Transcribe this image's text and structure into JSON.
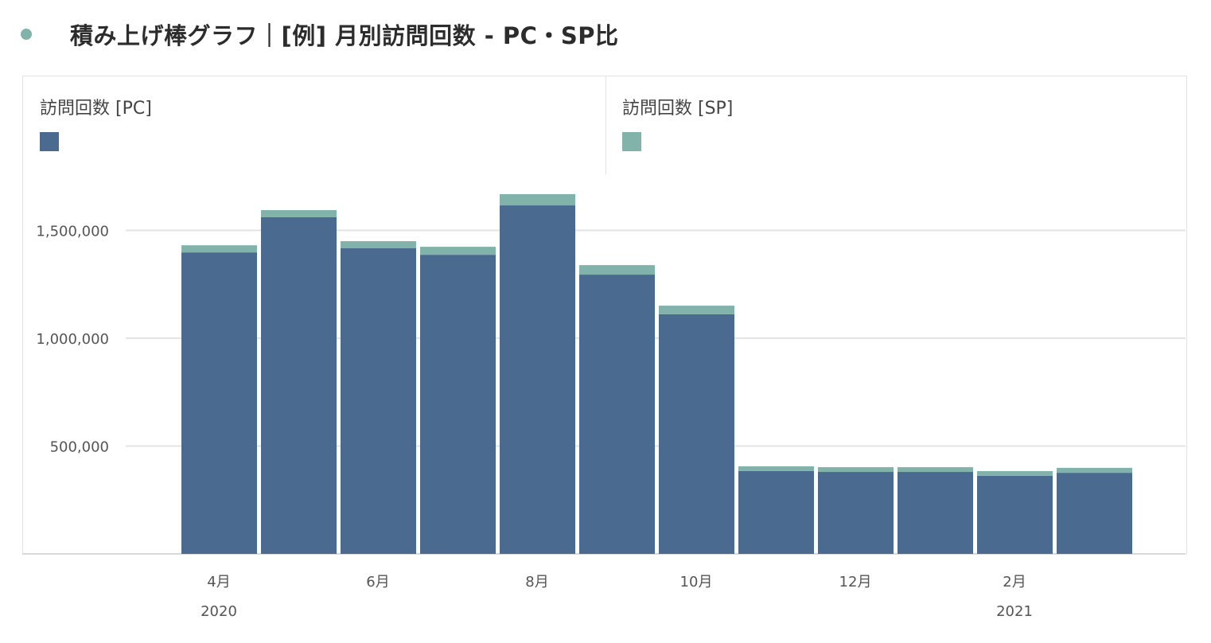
{
  "header": {
    "title": "積み上げ棒グラフ｜[例] 月別訪問回数 - PC・SP比",
    "dot_color": "#82b3ab"
  },
  "chart_data": {
    "type": "bar",
    "stacked": true,
    "categories": [
      "2020-04",
      "2020-05",
      "2020-06",
      "2020-07",
      "2020-08",
      "2020-09",
      "2020-10",
      "2020-11",
      "2020-12",
      "2021-01",
      "2021-02",
      "2021-03"
    ],
    "series": [
      {
        "name": "訪問回数 [PC]",
        "color": "#4a6b8f",
        "values": [
          1398000,
          1561000,
          1417000,
          1387000,
          1616000,
          1295000,
          1111000,
          384000,
          380000,
          380000,
          362000,
          376000
        ]
      },
      {
        "name": "訪問回数 [SP]",
        "color": "#82b3ab",
        "values": [
          33000,
          33000,
          33000,
          37000,
          52000,
          44000,
          40000,
          22000,
          22000,
          22000,
          22000,
          23000
        ]
      }
    ],
    "y_ticks": [
      "500,000",
      "1,000,000",
      "1,500,000"
    ],
    "y_tick_values": [
      500000,
      1000000,
      1500000
    ],
    "x_tick_labels": [
      "4月",
      "6月",
      "8月",
      "10月",
      "12月",
      "2月"
    ],
    "x_year_labels": [
      "2020",
      "2021"
    ],
    "ylim": [
      0,
      1750000
    ],
    "grid": true,
    "legend": "top"
  }
}
